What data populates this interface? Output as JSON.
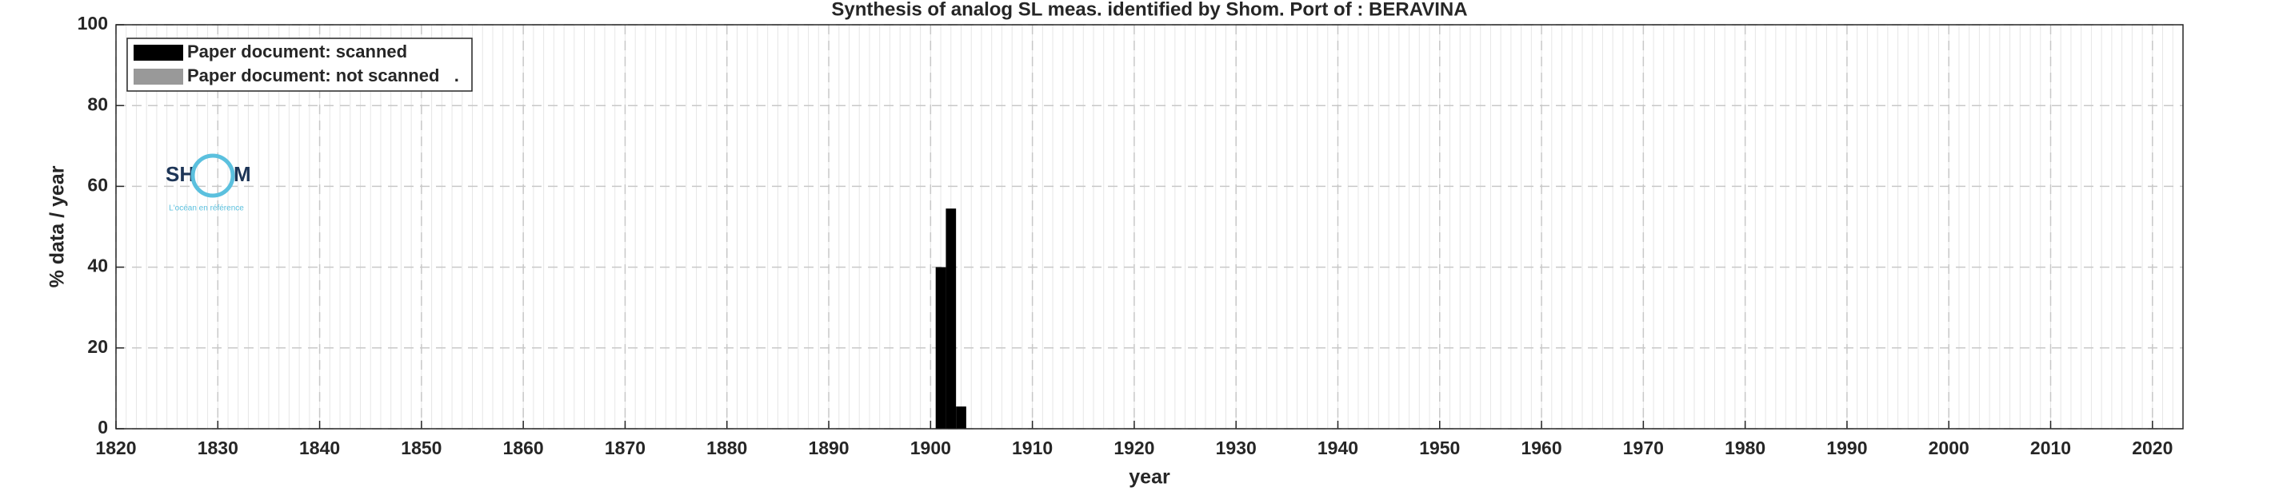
{
  "chart_data": {
    "type": "bar",
    "title": "Synthesis of analog SL meas. identified by Shom. Port of : BERAVINA",
    "x_label": "year",
    "y_label": "% data / year",
    "x": [
      1901,
      1902,
      1903
    ],
    "series": [
      {
        "name": "Paper document: scanned",
        "color": "#000000",
        "values": [
          40,
          54.5,
          5.5
        ]
      },
      {
        "name": "Paper document: not scanned   .",
        "color": "#999999",
        "values": [
          0,
          0,
          0
        ]
      }
    ],
    "xlim": [
      1820,
      2023
    ],
    "xticks": [
      1820,
      1830,
      1840,
      1850,
      1860,
      1870,
      1880,
      1890,
      1900,
      1910,
      1920,
      1930,
      1940,
      1950,
      1960,
      1970,
      1980,
      1990,
      2000,
      2010,
      2020
    ],
    "ylim": [
      0,
      100
    ],
    "yticks": [
      0,
      20,
      40,
      60,
      80,
      100
    ],
    "grid": true,
    "minor_grid": true,
    "legend": "upper left",
    "logo": {
      "left": "SH",
      "right": "M",
      "tagline": "L'océan en référence"
    }
  }
}
